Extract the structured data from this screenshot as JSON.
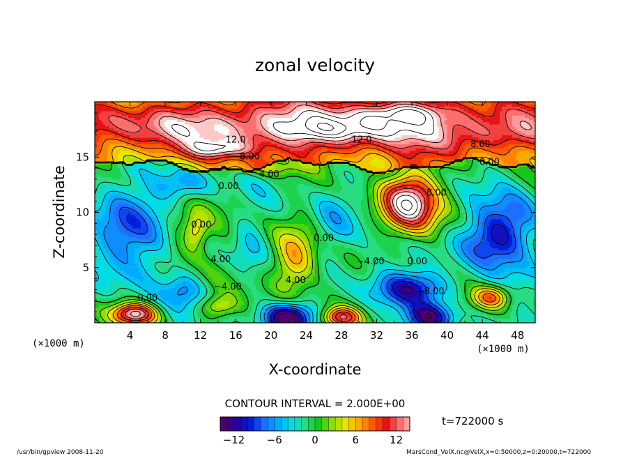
{
  "chart_data": {
    "type": "heatmap",
    "title": "zonal velocity",
    "xlabel": "X-coordinate",
    "ylabel": "Z-coordinate",
    "x_unit": "(×1000 m)",
    "z_unit": "(×1000 m)",
    "xlim": [
      0,
      50
    ],
    "ylim": [
      0,
      20
    ],
    "x_ticks": [
      "4",
      "8",
      "12",
      "16",
      "20",
      "24",
      "28",
      "32",
      "36",
      "40",
      "44",
      "48"
    ],
    "y_ticks": [
      "5",
      "10",
      "15"
    ],
    "contour_interval_text": "CONTOUR INTERVAL = 2.000E+00",
    "time_text": "t=722000 s",
    "colorbar": {
      "min": -14,
      "max": 14,
      "step": 1,
      "tick_labels": [
        "−12",
        "−6",
        "0",
        "6",
        "12"
      ],
      "tick_values": [
        -12,
        -6,
        0,
        6,
        12
      ]
    },
    "contour_labels": [
      {
        "text": "12.0",
        "x": 16,
        "z": 16.3
      },
      {
        "text": "12.0",
        "x": 30.3,
        "z": 16.3
      },
      {
        "text": "8.00",
        "x": 43.8,
        "z": 15.9
      },
      {
        "text": "8.00",
        "x": 17.6,
        "z": 14.8
      },
      {
        "text": "4.00",
        "x": 19.8,
        "z": 13.2
      },
      {
        "text": "0.00",
        "x": 44.8,
        "z": 14.3
      },
      {
        "text": "0.00",
        "x": 15.2,
        "z": 12.1
      },
      {
        "text": "8.00",
        "x": 38.8,
        "z": 11.5
      },
      {
        "text": "0.00",
        "x": 12.1,
        "z": 8.6
      },
      {
        "text": "0.00",
        "x": 26,
        "z": 7.4
      },
      {
        "text": "4.00",
        "x": 14.3,
        "z": 5.5
      },
      {
        "text": "−4.00",
        "x": 31.3,
        "z": 5.3
      },
      {
        "text": "0.00",
        "x": 36.6,
        "z": 5.3
      },
      {
        "text": "4.00",
        "x": 22.8,
        "z": 3.6
      },
      {
        "text": "−4.00",
        "x": 15.1,
        "z": 3.0
      },
      {
        "text": "−8.00",
        "x": 38.1,
        "z": 2.6
      },
      {
        "text": "0.00",
        "x": 6,
        "z": 2.0
      }
    ],
    "features": [
      {
        "x": 25,
        "z": 17.8,
        "v": 11,
        "sx": 32,
        "sz": 2.4
      },
      {
        "x": 35,
        "z": 19.0,
        "v": 6,
        "sx": 5,
        "sz": 1.0
      },
      {
        "x": 14,
        "z": 15.7,
        "v": 6,
        "sx": 3.5,
        "sz": 0.8
      },
      {
        "x": 27,
        "z": 17.5,
        "v": 3,
        "sx": 5,
        "sz": 0.9
      },
      {
        "x": 47,
        "z": 17.0,
        "v": 2,
        "sx": 4,
        "sz": 1.2
      },
      {
        "x": 20,
        "z": 14.0,
        "v": 3,
        "sx": 4,
        "sz": 0.7
      },
      {
        "x": 3,
        "z": 8,
        "v": -7,
        "sx": 4,
        "sz": 4
      },
      {
        "x": 10,
        "z": 12.5,
        "v": -5,
        "sx": 3,
        "sz": 1.5
      },
      {
        "x": 10,
        "z": 8,
        "v": 3,
        "sx": 2.5,
        "sz": 3
      },
      {
        "x": 11.5,
        "z": 8.3,
        "v": 5,
        "sx": 1.3,
        "sz": 1.5
      },
      {
        "x": 22.5,
        "z": 5.5,
        "v": 8.5,
        "sx": 2.5,
        "sz": 3
      },
      {
        "x": 21,
        "z": 9,
        "v": 1.5,
        "sx": 6,
        "sz": 3.5
      },
      {
        "x": 27,
        "z": 9,
        "v": -4.5,
        "sx": 2.5,
        "sz": 3.5
      },
      {
        "x": 17.5,
        "z": 7.5,
        "v": -3,
        "sx": 2,
        "sz": 3
      },
      {
        "x": 35.5,
        "z": 10.8,
        "v": 19,
        "sx": 3.2,
        "sz": 2.6
      },
      {
        "x": 36,
        "z": 3.2,
        "v": -9,
        "sx": 4,
        "sz": 1.5
      },
      {
        "x": 45,
        "z": 7.5,
        "v": -8,
        "sx": 4,
        "sz": 2.5
      },
      {
        "x": 47.5,
        "z": 10,
        "v": -3,
        "sx": 3,
        "sz": 2.5
      },
      {
        "x": 4.5,
        "z": 0.8,
        "v": 15,
        "sx": 2.5,
        "sz": 1.0
      },
      {
        "x": 22,
        "z": 0.5,
        "v": -14,
        "sx": 2.5,
        "sz": 1.2
      },
      {
        "x": 28,
        "z": 0.5,
        "v": 12,
        "sx": 2,
        "sz": 0.9
      },
      {
        "x": 38,
        "z": 0.5,
        "v": -10,
        "sx": 2.5,
        "sz": 1.2
      },
      {
        "x": 45,
        "z": 2.3,
        "v": 9,
        "sx": 2,
        "sz": 1.0
      },
      {
        "x": 14,
        "z": 1.5,
        "v": 6,
        "sx": 2,
        "sz": 1.0
      },
      {
        "x": 10,
        "z": 3,
        "v": -4,
        "sx": 2,
        "sz": 1.5
      }
    ]
  },
  "footer": {
    "left": "/usr/bin/gpview  2008-11-20",
    "right": "MarsCond_VelX.nc@VelX,x=0:50000,z=0:20000,t=722000"
  }
}
